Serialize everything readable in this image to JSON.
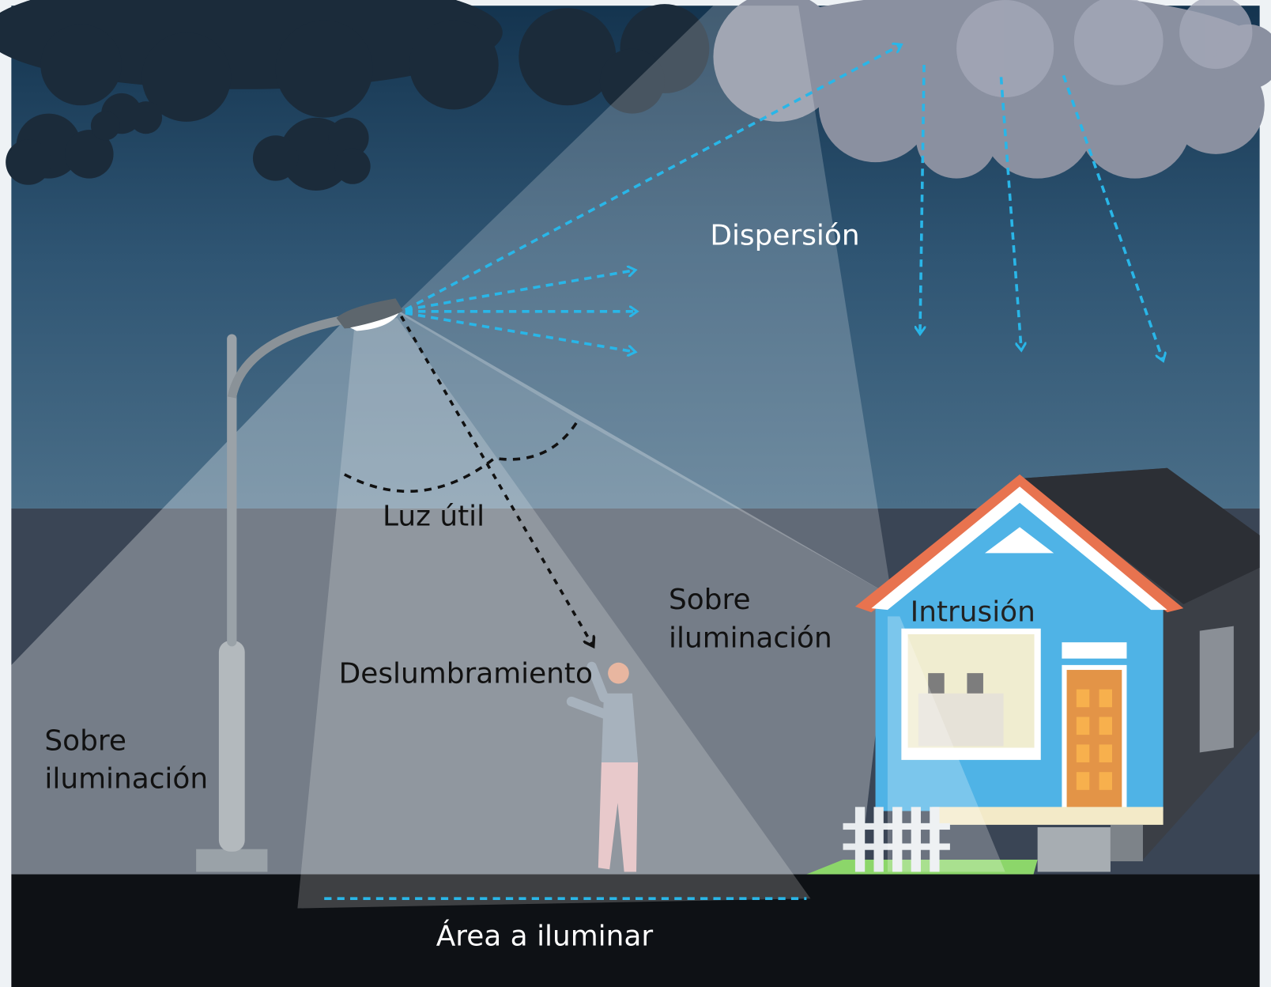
{
  "labels": {
    "dispersion": "Dispersión",
    "useful_light": "Luz útil",
    "over_lighting_right": [
      "Sobre",
      "iluminación"
    ],
    "over_lighting_left": [
      "Sobre",
      "iluminación"
    ],
    "intrusion": "Intrusión",
    "glare": "Deslumbramiento",
    "area": "Área a iluminar"
  }
}
